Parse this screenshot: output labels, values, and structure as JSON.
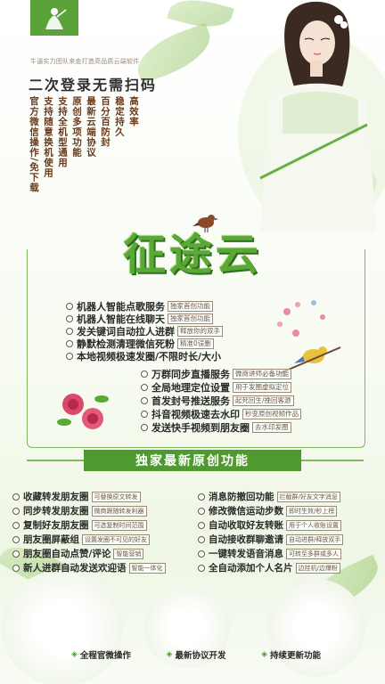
{
  "tagline_small": "牛逼实力团队来金打造高品质云端软件",
  "second_login": "二次登录无需扫码",
  "vertical_columns": [
    "官方微信操作/免下载",
    "支持随意换机使用",
    "支持全机型通用",
    "原创多项功能",
    "最新云端协议",
    "百分百防封",
    "稳定持久",
    "高效率"
  ],
  "title": "征途云",
  "upper_features": [
    {
      "main": "机器人智能点歌服务",
      "note": "独家首创功能"
    },
    {
      "main": "机器人智能在线聊天",
      "note": "独家首创功能"
    },
    {
      "main": "发关键词自动拉人进群",
      "note": "释放你的双手"
    },
    {
      "main": "静默检测清理微信死粉",
      "note": "精准0误删"
    },
    {
      "main": "本地视频极速发圈/不限时长/大小",
      "note": ""
    }
  ],
  "right_features": [
    {
      "main": "万群同步直播服务",
      "note": "微商讲师必备功能"
    },
    {
      "main": "全局地理定位设置",
      "note": "用于发圈虚拟定位"
    },
    {
      "main": "首发封号推送服务",
      "note": "起死回生/挽回客源"
    },
    {
      "main": "抖音视频极速去水印",
      "note": "秒变原创视频作品"
    },
    {
      "main": "发送快手视频到朋友圈",
      "note": "去水印发圈"
    }
  ],
  "banner": "独家最新原创功能",
  "grid_left": [
    {
      "main": "收藏转发朋友圈",
      "note": "可替换原文转发"
    },
    {
      "main": "同步转发朋友圈",
      "note": "微商跟随转发利器"
    },
    {
      "main": "复制好友朋友圈",
      "note": "可选复制时间范围"
    },
    {
      "main": "朋友圈屏蔽组",
      "note": "设置发圈不可见的好友"
    },
    {
      "main": "朋友圈自动点赞/评论",
      "note": "智能营销"
    },
    {
      "main": "新人进群自动发送欢迎语",
      "note": "智能一体化"
    }
  ],
  "grid_right": [
    {
      "main": "消息防撤回功能",
      "note": "拦截群/好友文字消息"
    },
    {
      "main": "修改微信运动步数",
      "note": "即时生效/秒上榜"
    },
    {
      "main": "自动收取好友转账",
      "note": "用于个人收账设置"
    },
    {
      "main": "自动接收群聊邀请",
      "note": "自动进群/释放双手"
    },
    {
      "main": "一键转发语音消息",
      "note": "可转至多群或多人"
    },
    {
      "main": "全自动添加个人名片",
      "note": "边挂机/边爆粉"
    }
  ],
  "bottom": [
    "全程官微操作",
    "最新协议开发",
    "持续更新功能"
  ],
  "colors": {
    "brand_green": "#4f9a2f",
    "title_green": "#5aa836"
  }
}
